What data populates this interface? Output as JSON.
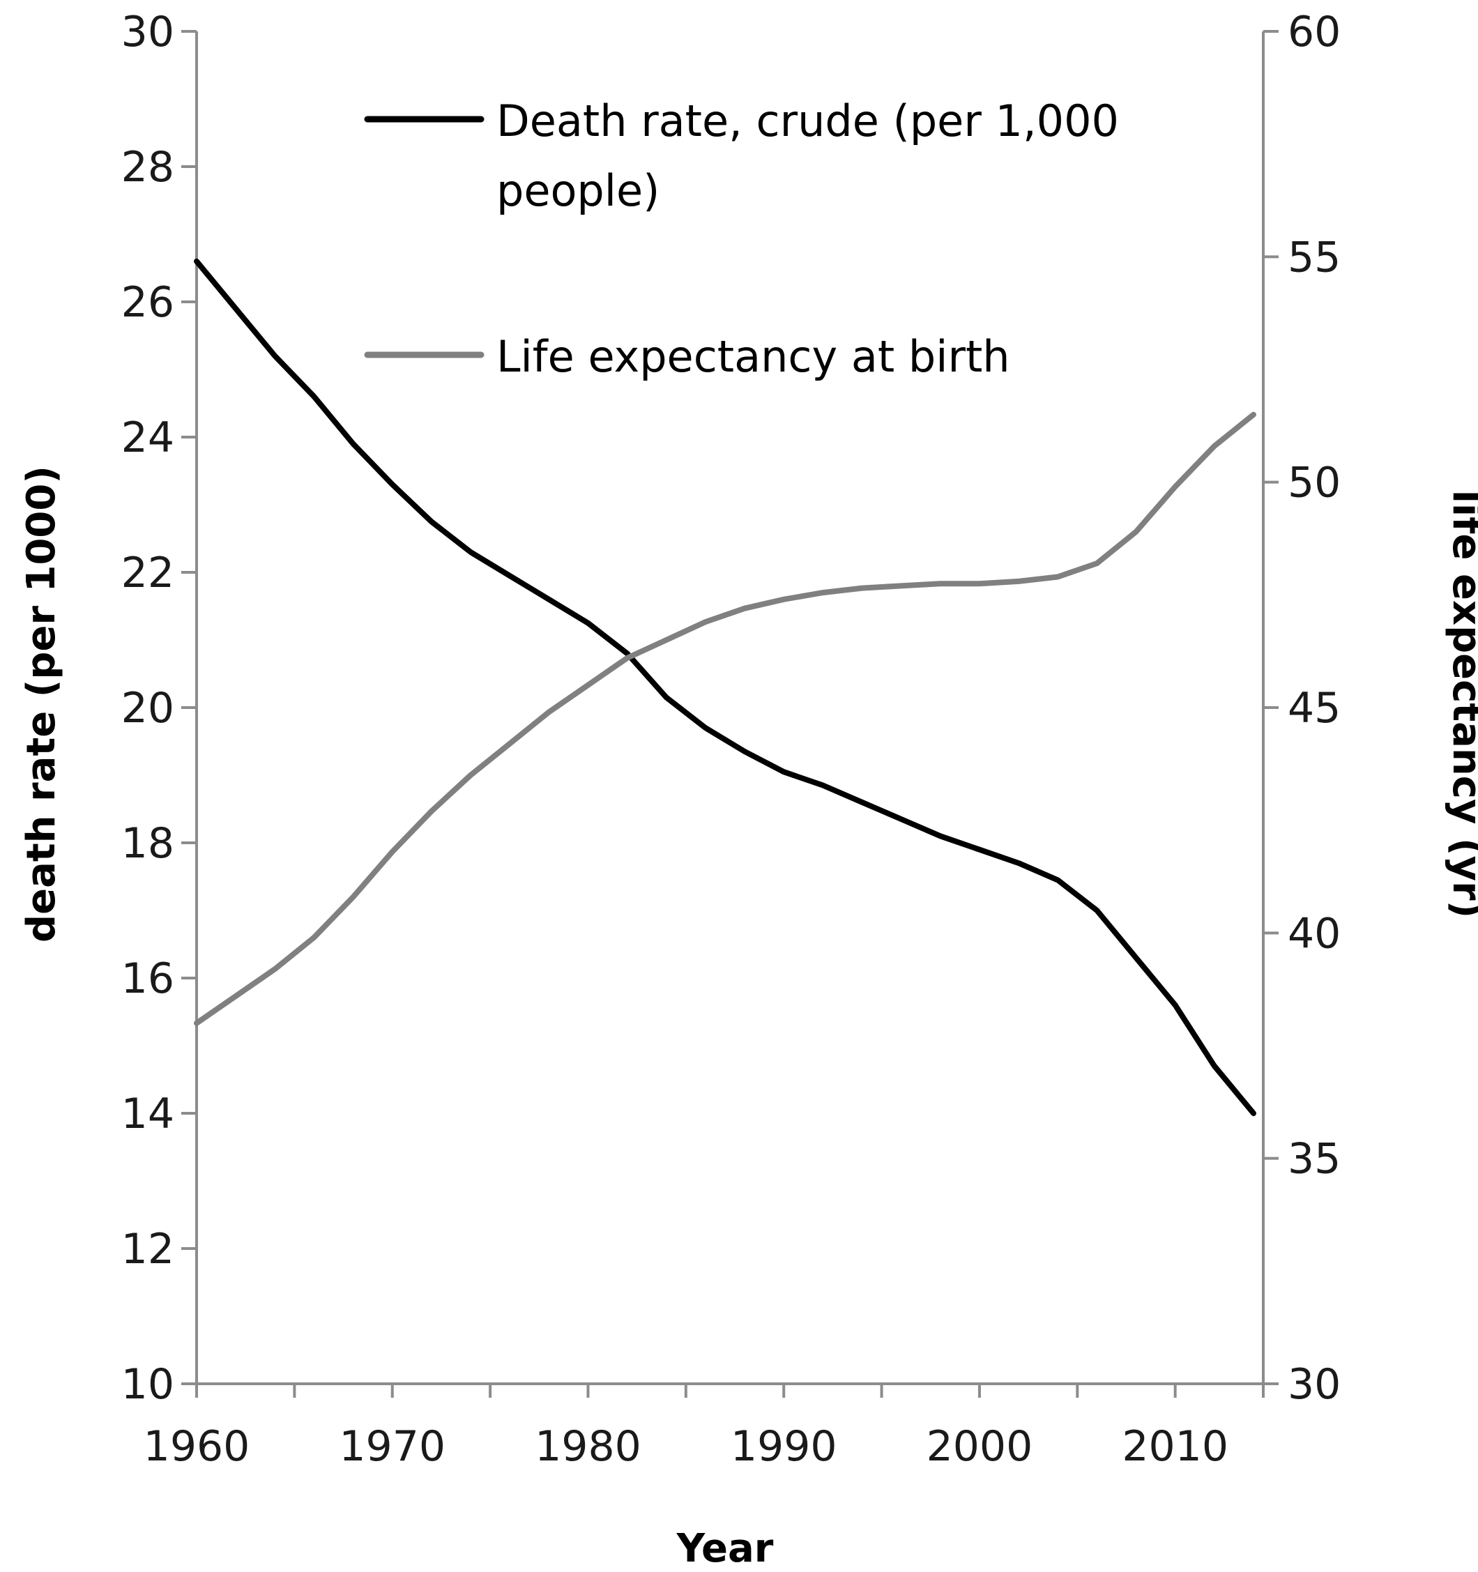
{
  "chart_data": {
    "type": "line",
    "title": "",
    "xlabel": "Year",
    "ylabel": "death rate (per 1000)",
    "y2label": "life expectancy (yr)",
    "xlim": [
      1960,
      2014.5
    ],
    "ylim": [
      10,
      30
    ],
    "y2lim": [
      30,
      60
    ],
    "xticks": [
      1960,
      1970,
      1980,
      1990,
      2000,
      2010
    ],
    "yticks": [
      10,
      12,
      14,
      16,
      18,
      20,
      22,
      24,
      26,
      28,
      30
    ],
    "y2ticks": [
      30,
      35,
      40,
      45,
      50,
      55,
      60
    ],
    "grid": false,
    "legend_position": "top-center",
    "series": [
      {
        "name": "Death rate, crude (per 1,000 people)",
        "axis": "left",
        "color": "#000000",
        "x": [
          1960,
          1962,
          1964,
          1966,
          1968,
          1970,
          1972,
          1974,
          1976,
          1978,
          1980,
          1982,
          1984,
          1986,
          1988,
          1990,
          1992,
          1994,
          1996,
          1998,
          2000,
          2002,
          2004,
          2006,
          2008,
          2010,
          2012,
          2014
        ],
        "values": [
          26.6,
          25.9,
          25.2,
          24.6,
          23.9,
          23.3,
          22.75,
          22.3,
          21.95,
          21.6,
          21.25,
          20.8,
          20.15,
          19.7,
          19.35,
          19.05,
          18.85,
          18.6,
          18.35,
          18.1,
          17.9,
          17.7,
          17.45,
          17.0,
          16.3,
          15.6,
          14.7,
          14.0
        ]
      },
      {
        "name": "Life expectancy at birth",
        "axis": "right",
        "color": "#808080",
        "x": [
          1960,
          1962,
          1964,
          1966,
          1968,
          1970,
          1972,
          1974,
          1976,
          1978,
          1980,
          1982,
          1984,
          1986,
          1988,
          1990,
          1992,
          1994,
          1996,
          1998,
          2000,
          2002,
          2004,
          2006,
          2008,
          2010,
          2012,
          2014
        ],
        "values": [
          38.0,
          38.6,
          39.2,
          39.9,
          40.8,
          41.8,
          42.7,
          43.5,
          44.2,
          44.9,
          45.5,
          46.1,
          46.5,
          46.9,
          47.2,
          47.4,
          47.55,
          47.65,
          47.7,
          47.75,
          47.75,
          47.8,
          47.9,
          48.2,
          48.9,
          49.9,
          50.8,
          51.5
        ]
      }
    ]
  }
}
